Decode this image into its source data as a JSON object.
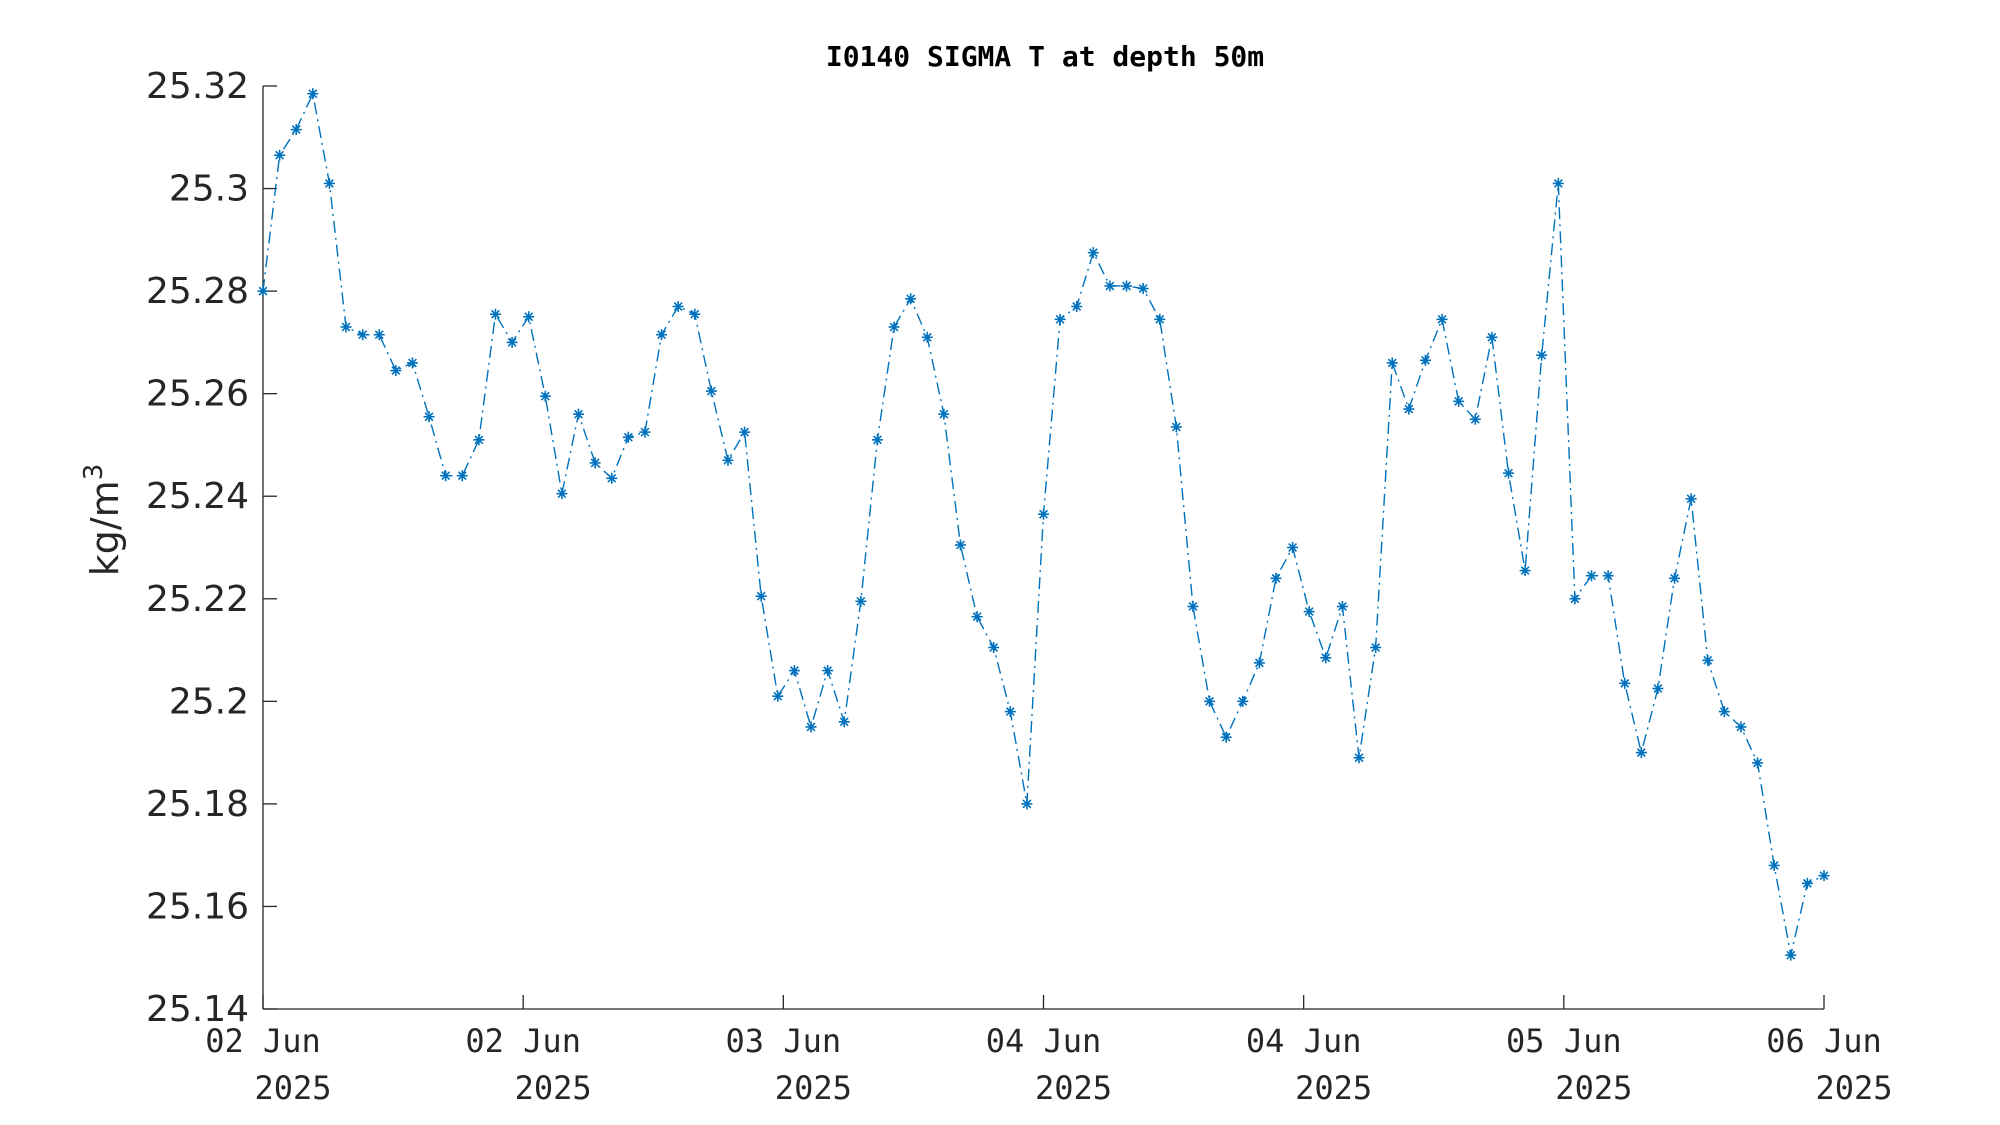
{
  "chart_data": {
    "type": "line",
    "title": "I0140 SIGMA T at depth 50m",
    "ylabel": "kg/m",
    "ylabel_superscript": "3",
    "ylim": [
      25.14,
      25.32
    ],
    "yticks": [
      "25.14",
      "25.16",
      "25.18",
      "25.2",
      "25.22",
      "25.24",
      "25.26",
      "25.28",
      "25.3",
      "25.32"
    ],
    "xlim_hours": [
      0,
      96
    ],
    "xticks": [
      {
        "line1": "02 Jun",
        "line2": "2025"
      },
      {
        "line1": "02 Jun",
        "line2": "2025"
      },
      {
        "line1": "03 Jun",
        "line2": "2025"
      },
      {
        "line1": "04 Jun",
        "line2": "2025"
      },
      {
        "line1": "04 Jun",
        "line2": "2025"
      },
      {
        "line1": "05 Jun",
        "line2": "2025"
      },
      {
        "line1": "06 Jun",
        "line2": "2025"
      }
    ],
    "series": [
      {
        "color": "#0072BD",
        "line_style": "dash-dot",
        "marker": "asterisk",
        "values": [
          25.28,
          25.3065,
          25.3115,
          25.3185,
          25.301,
          25.273,
          25.2715,
          25.2715,
          25.2645,
          25.266,
          25.2555,
          25.244,
          25.244,
          25.251,
          25.2755,
          25.27,
          25.275,
          25.2595,
          25.2405,
          25.256,
          25.2465,
          25.2435,
          25.2515,
          25.2525,
          25.2715,
          25.277,
          25.2755,
          25.2605,
          25.247,
          25.2525,
          25.2205,
          25.201,
          25.206,
          25.195,
          25.206,
          25.196,
          25.2195,
          25.251,
          25.273,
          25.2785,
          25.271,
          25.256,
          25.2305,
          25.2165,
          25.2105,
          25.198,
          25.18,
          25.2365,
          25.2745,
          25.277,
          25.2875,
          25.281,
          25.281,
          25.2805,
          25.2745,
          25.2535,
          25.2185,
          25.2,
          25.193,
          25.2,
          25.2075,
          25.224,
          25.23,
          25.2175,
          25.2085,
          25.2185,
          25.189,
          25.2105,
          25.266,
          25.257,
          25.2665,
          25.2745,
          25.2585,
          25.255,
          25.271,
          25.2445,
          25.2255,
          25.2675,
          25.301,
          25.22,
          25.2245,
          25.2245,
          25.2035,
          25.19,
          25.2025,
          25.224,
          25.2395,
          25.208,
          25.198,
          25.195,
          25.188,
          25.168,
          25.1505,
          25.1645,
          25.166
        ]
      }
    ],
    "grid": false,
    "legend": "none"
  }
}
